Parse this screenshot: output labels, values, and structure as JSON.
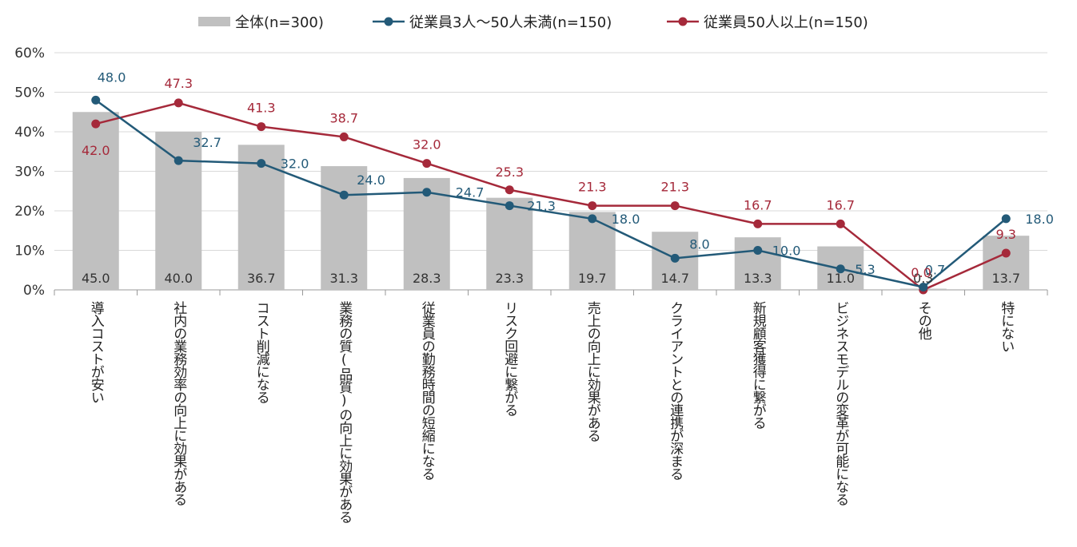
{
  "chart_data": {
    "type": "bar",
    "categories": [
      "導入コストが安い",
      "社内の業務効率の向上に効果がある",
      "コスト削減になる",
      "業務の質(品質)の向上に効果がある",
      "従業員の勤務時間の短縮になる",
      "リスク回避に繋がる",
      "売上の向上に効果がある",
      "クライアントとの連携が深まる",
      "新規顧客獲得に繋がる",
      "ビジネスモデルの変革が可能になる",
      "その他",
      "特にない"
    ],
    "ylim": [
      0,
      60
    ],
    "yticks": [
      "0%",
      "10%",
      "20%",
      "30%",
      "40%",
      "50%",
      "60%"
    ],
    "series": [
      {
        "name": "全体(n=300)",
        "type": "bar",
        "color": "#c0c0c0",
        "values": [
          45.0,
          40.0,
          36.7,
          31.3,
          28.3,
          23.3,
          19.7,
          14.7,
          13.3,
          11.0,
          0.3,
          13.7
        ],
        "labels": [
          "45.0",
          "40.0",
          "36.7",
          "31.3",
          "28.3",
          "23.3",
          "19.7",
          "14.7",
          "13.3",
          "11.0",
          "0.3",
          "13.7"
        ]
      },
      {
        "name": "従業員3人～50人未満(n=150)",
        "type": "line",
        "color": "#235a78",
        "values": [
          48.0,
          32.7,
          32.0,
          24.0,
          24.7,
          21.3,
          18.0,
          8.0,
          10.0,
          5.3,
          0.7,
          18.0
        ],
        "labels": [
          "48.0",
          "32.7",
          "32.0",
          "24.0",
          "24.7",
          "21.3",
          "18.0",
          "8.0",
          "10.0",
          "5.3",
          "0.7",
          "18.0"
        ]
      },
      {
        "name": "従業員50人以上(n=150)",
        "type": "line",
        "color": "#a5293a",
        "values": [
          42.0,
          47.3,
          41.3,
          38.7,
          32.0,
          25.3,
          21.3,
          21.3,
          16.7,
          16.7,
          0.0,
          9.3
        ],
        "labels": [
          "42.0",
          "47.3",
          "41.3",
          "38.7",
          "32.0",
          "25.3",
          "21.3",
          "21.3",
          "16.7",
          "16.7",
          "0.0",
          "9.3"
        ]
      }
    ]
  }
}
